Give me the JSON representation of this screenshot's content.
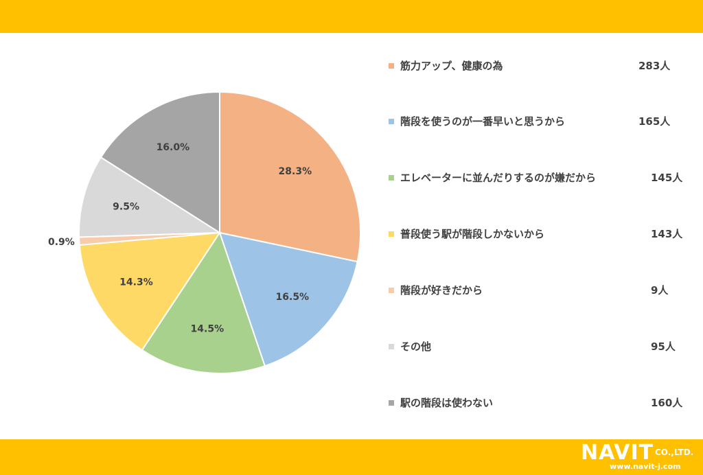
{
  "chart_data": {
    "type": "pie",
    "labels": [
      "筋力アップ、健康の為",
      "階段を使うのが一番早いと思うから",
      "エレベーターに並んだりするのが嫌だから",
      "普段使う駅が階段しかないから",
      "階段が好きだから",
      "その他",
      "駅の階段は使わない"
    ],
    "values": [
      28.3,
      16.5,
      14.5,
      14.3,
      0.9,
      9.5,
      16.0
    ],
    "data_labels": [
      "28.3%",
      "16.5%",
      "14.5%",
      "14.3%",
      "0.9%",
      "9.5%",
      "16.0%"
    ],
    "counts": [
      "283人",
      "165人",
      "145人",
      "143人",
      "9人",
      "95人",
      "160人"
    ],
    "colors": [
      "#F4B183",
      "#9DC3E6",
      "#A9D18E",
      "#FFD966",
      "#F8CBAD",
      "#D9D9D9",
      "#A5A5A5"
    ],
    "legend_position": "right"
  },
  "logo": {
    "main": "NAVIT",
    "co": "CO.,LTD.",
    "url": "www.navit-j.com"
  },
  "colors": {
    "bar": "#FFC000",
    "text": "#404040"
  }
}
